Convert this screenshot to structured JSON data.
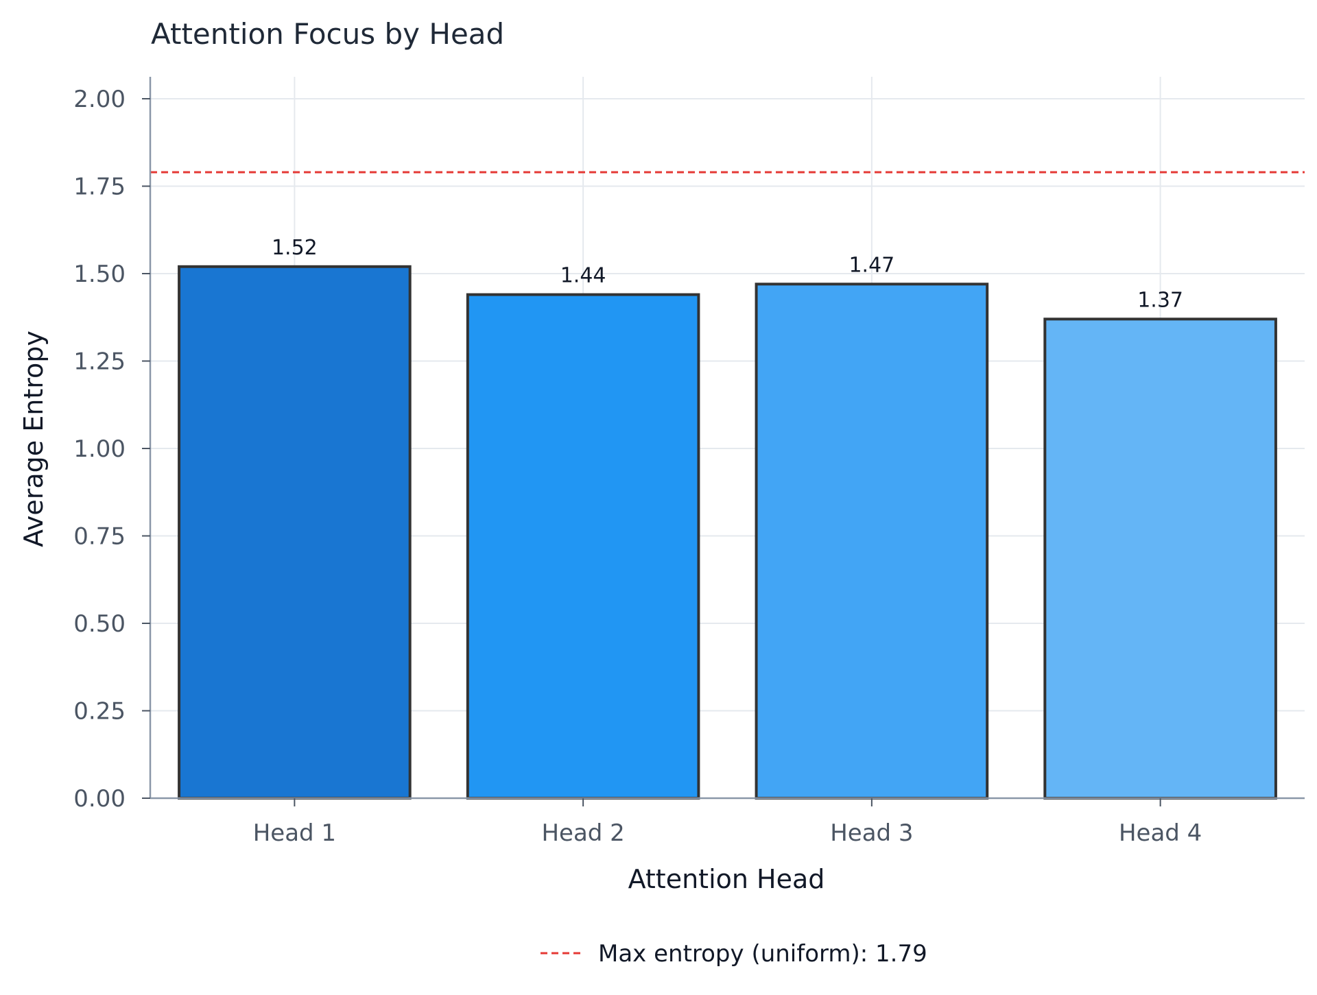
{
  "chart_data": {
    "type": "bar",
    "title": "Attention Focus by Head",
    "xlabel": "Attention Head",
    "ylabel": "Average Entropy",
    "categories": [
      "Head 1",
      "Head 2",
      "Head 3",
      "Head 4"
    ],
    "values": [
      1.52,
      1.44,
      1.47,
      1.37
    ],
    "value_labels": [
      "1.52",
      "1.44",
      "1.47",
      "1.37"
    ],
    "bar_colors": [
      "#1976d2",
      "#2196f3",
      "#42a5f5",
      "#64b5f6"
    ],
    "bar_edge_color": "#333333",
    "ylim": [
      0,
      2.0
    ],
    "yticks": [
      0.0,
      0.25,
      0.5,
      0.75,
      1.0,
      1.25,
      1.5,
      1.75,
      2.0
    ],
    "ytick_labels": [
      "0.00",
      "0.25",
      "0.50",
      "0.75",
      "1.00",
      "1.25",
      "1.50",
      "1.75",
      "2.00"
    ],
    "grid": true,
    "reference_line": {
      "value": 1.79,
      "label": "Max entropy (uniform): 1.79",
      "style": "dashed",
      "color": "#e53935"
    },
    "legend_position": "bottom-center"
  }
}
